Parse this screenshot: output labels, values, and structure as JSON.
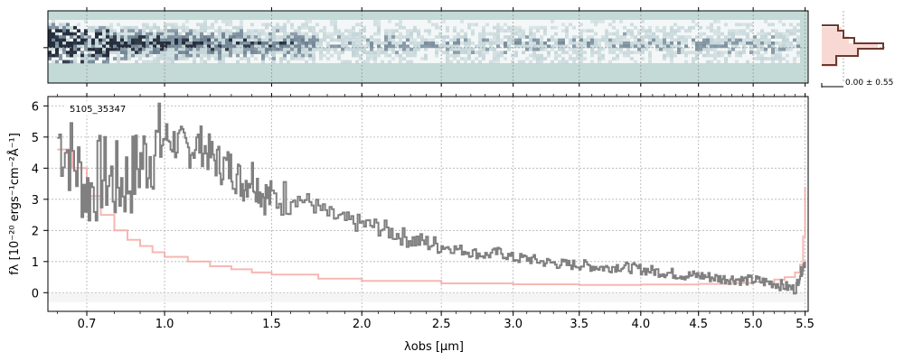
{
  "chart_data": [
    {
      "type": "heatmap",
      "panel": "2d-spectrum",
      "description_colormap": "bone_r",
      "background_color": "#c3dad7",
      "ink_color": "#252e3c",
      "x_ticks_um": [
        0.7,
        1.0,
        1.5,
        2.0,
        2.5,
        3.0,
        3.5,
        4.0,
        4.5,
        5.0,
        5.5
      ],
      "trace_center_fraction": 0.46
    },
    {
      "type": "line",
      "panel": "1d-spectrum",
      "object_label": "5105_35347",
      "xlabel": "λobs [μm]",
      "ylabel": "fλ [10⁻²⁰ ergs⁻¹cm⁻²Å⁻¹]",
      "ylim": [
        -0.6,
        6.3
      ],
      "xlim_um": [
        0.57,
        5.53
      ],
      "x_ticks": [
        0.7,
        1.0,
        1.5,
        2.0,
        2.5,
        3.0,
        3.5,
        4.0,
        4.5,
        5.0,
        5.5
      ],
      "x_tick_labels": [
        "0.7",
        "1.0",
        "1.5",
        "2.0",
        "2.5",
        "3.0",
        "3.5",
        "4.0",
        "4.5",
        "5.0",
        "5.5"
      ],
      "y_ticks": [
        0,
        1,
        2,
        3,
        4,
        5,
        6
      ],
      "y_tick_labels": [
        "0",
        "1",
        "2",
        "3",
        "4",
        "5",
        "6"
      ],
      "grid": true,
      "series": [
        {
          "role": "flux",
          "color": "#808080",
          "x": [
            0.6,
            0.65,
            0.7,
            0.75,
            0.8,
            0.85,
            0.9,
            0.95,
            1.0,
            1.05,
            1.1,
            1.15,
            1.2,
            1.25,
            1.3,
            1.35,
            1.4,
            1.45,
            1.5,
            1.6,
            1.7,
            1.8,
            1.9,
            2.0,
            2.1,
            2.2,
            2.3,
            2.4,
            2.5,
            2.6,
            2.7,
            2.8,
            2.9,
            3.0,
            3.1,
            3.2,
            3.3,
            3.4,
            3.5,
            3.6,
            3.7,
            3.8,
            3.9,
            4.0,
            4.1,
            4.2,
            4.3,
            4.4,
            4.5,
            4.6,
            4.7,
            4.8,
            4.9,
            5.0,
            5.1,
            5.2,
            5.3,
            5.4,
            5.45,
            5.5
          ],
          "y": [
            5.0,
            4.3,
            3.2,
            3.8,
            3.5,
            3.6,
            4.2,
            4.6,
            5.0,
            4.8,
            4.6,
            4.8,
            4.4,
            4.1,
            4.0,
            3.5,
            3.8,
            3.2,
            3.0,
            3.1,
            2.9,
            2.5,
            2.3,
            2.2,
            2.1,
            1.9,
            1.7,
            1.6,
            1.5,
            1.4,
            1.3,
            1.2,
            1.3,
            1.1,
            1.1,
            1.0,
            0.95,
            0.9,
            0.9,
            0.85,
            0.8,
            0.85,
            0.8,
            0.75,
            0.7,
            0.65,
            0.6,
            0.55,
            0.55,
            0.5,
            0.45,
            0.45,
            0.4,
            0.4,
            0.35,
            0.3,
            0.2,
            0.1,
            0.6,
            1.0
          ]
        },
        {
          "role": "error",
          "color": "#f5a5a0",
          "x": [
            0.6,
            0.65,
            0.7,
            0.75,
            0.8,
            0.85,
            0.9,
            0.95,
            1.0,
            1.1,
            1.2,
            1.3,
            1.4,
            1.5,
            1.75,
            2.0,
            2.5,
            3.0,
            3.5,
            4.0,
            4.5,
            4.8,
            5.0,
            5.2,
            5.3,
            5.4,
            5.45,
            5.48,
            5.5
          ],
          "y": [
            4.6,
            4.0,
            3.1,
            2.5,
            2.0,
            1.7,
            1.5,
            1.3,
            1.15,
            1.0,
            0.85,
            0.75,
            0.65,
            0.58,
            0.45,
            0.38,
            0.3,
            0.27,
            0.25,
            0.26,
            0.28,
            0.31,
            0.35,
            0.42,
            0.5,
            0.65,
            0.9,
            1.8,
            3.4
          ]
        }
      ]
    },
    {
      "type": "histogram",
      "panel": "side-histogram",
      "label": "0.00 ± 0.55",
      "color": "#6b3a2e",
      "fill_color": "#f8d8d3"
    }
  ]
}
